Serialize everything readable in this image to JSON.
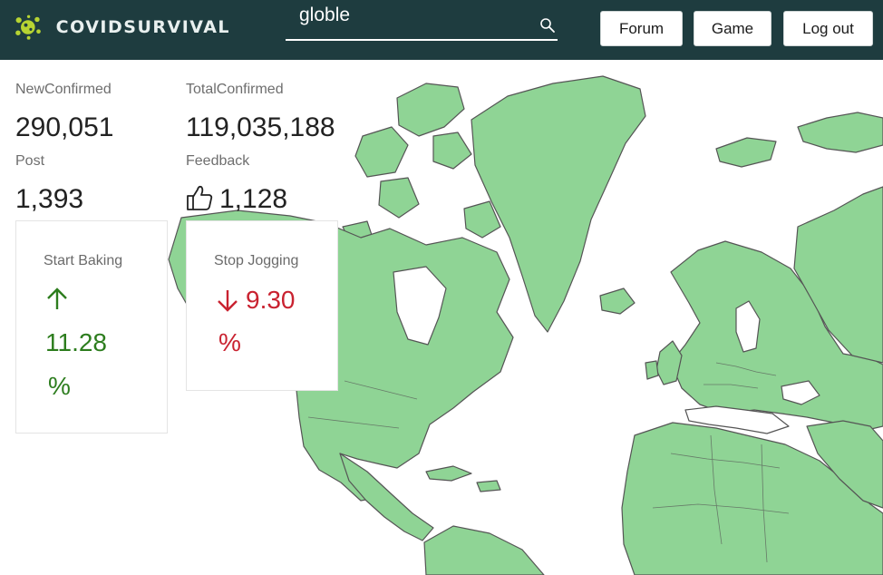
{
  "header": {
    "logo_text": "COVIDSURVIVAL",
    "search": {
      "value": "globle",
      "placeholder": ""
    },
    "nav": {
      "forum": "Forum",
      "game": "Game",
      "logout": "Log out"
    }
  },
  "stats": {
    "new_confirmed": {
      "label": "NewConfirmed",
      "value": "290,051"
    },
    "total_confirmed": {
      "label": "TotalConfirmed",
      "value": "119,035,188"
    },
    "post": {
      "label": "Post",
      "value": "1,393"
    },
    "feedback": {
      "label": "Feedback",
      "value": "1,128",
      "icon": "thumbs-up-icon"
    }
  },
  "trends": [
    {
      "title": "Start Baking",
      "direction": "up",
      "value": "11.28",
      "unit": "%",
      "color": "#2d7d1e"
    },
    {
      "title": "Stop Jogging",
      "direction": "down",
      "value": "9.30",
      "unit": "%",
      "color": "#c92230"
    }
  ],
  "colors": {
    "header_bg": "#1e3c3f",
    "land": "#8fd495",
    "border": "#555555",
    "logo": "#b7d432"
  }
}
